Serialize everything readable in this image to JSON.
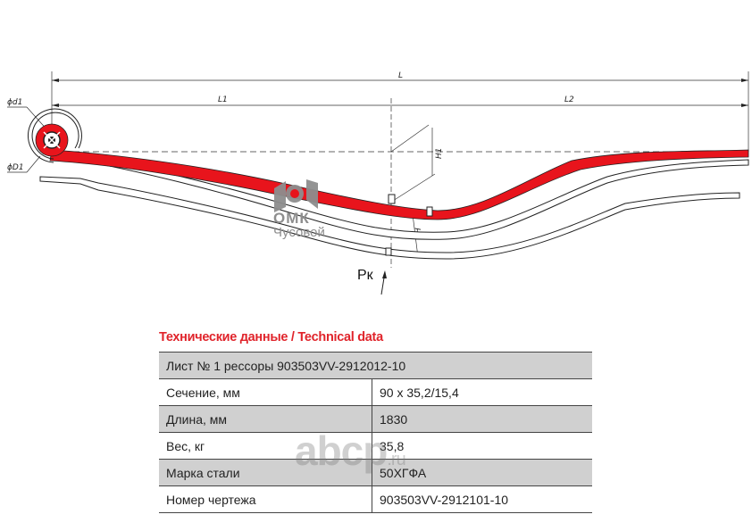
{
  "drawing": {
    "dimensions": {
      "L": "L",
      "L1": "L1",
      "L2": "L2",
      "d1": "ϕd1",
      "D1": "ϕD1",
      "H": "H",
      "H1": "H1"
    },
    "load_label": "Рк",
    "logo": {
      "line1": "ОМК",
      "line2": "Чусовой"
    },
    "colors": {
      "leaf": "#e8141c",
      "logo": "#8e8e8e"
    }
  },
  "table": {
    "title": "Технические данные / Technical data",
    "header": "Лист № 1 рессоры 903503VV-2912012-10",
    "rows": [
      {
        "label": "Сечение, мм",
        "value": "90 х 35,2/15,4"
      },
      {
        "label": "Длина, мм",
        "value": "1830"
      },
      {
        "label": "Вес, кг",
        "value": "35,8"
      },
      {
        "label": "Марка стали",
        "value": "50ХГФА"
      },
      {
        "label": "Номер чертежа",
        "value": "903503VV-2912101-10"
      }
    ],
    "title_color": "#e0242b",
    "shade_color": "#d0d0d0"
  },
  "watermark": {
    "main": "abcp",
    "suffix": ".ru"
  }
}
